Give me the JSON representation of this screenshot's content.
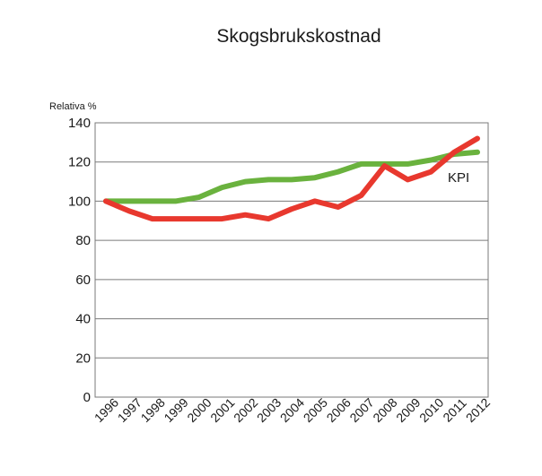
{
  "chart_data": {
    "type": "line",
    "title": "Skogsbrukskostnad",
    "ylabel": "Relativa %",
    "xlabel": "",
    "x": [
      "1996",
      "1997",
      "1998",
      "1999",
      "2000",
      "2001",
      "2002",
      "2003",
      "2004",
      "2005",
      "2006",
      "2007",
      "2008",
      "2009",
      "2010",
      "2011",
      "2012"
    ],
    "ylim": [
      0,
      140
    ],
    "yticks": [
      0,
      20,
      40,
      60,
      80,
      100,
      120,
      140
    ],
    "grid": true,
    "series": [
      {
        "color": "#6ab23e",
        "values": [
          100,
          100,
          100,
          100,
          102,
          107,
          110,
          111,
          111,
          112,
          115,
          119,
          119,
          119,
          121,
          124,
          125
        ]
      },
      {
        "color": "#e8382e",
        "values": [
          100,
          95,
          91,
          91,
          91,
          91,
          93,
          91,
          96,
          100,
          97,
          103,
          118,
          111,
          115,
          125,
          132
        ]
      }
    ],
    "annotations": [
      {
        "text": "KPI",
        "series_index": 0
      }
    ]
  }
}
